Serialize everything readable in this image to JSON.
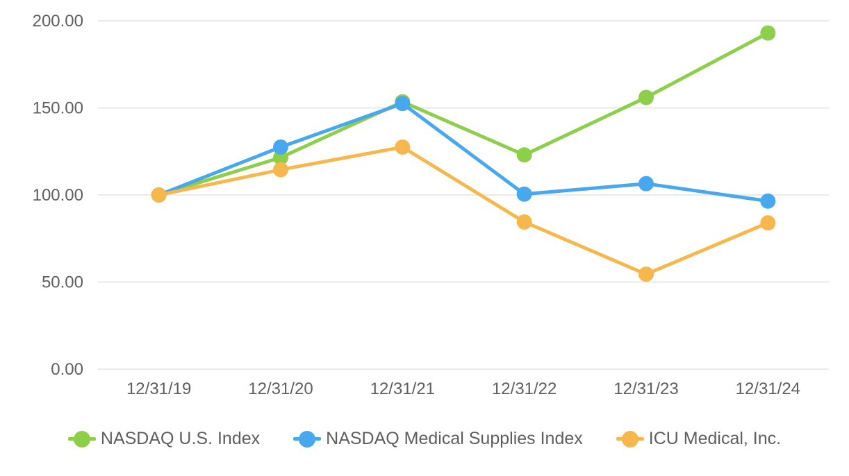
{
  "chart_data": {
    "type": "line",
    "title": "",
    "xlabel": "",
    "ylabel": "",
    "categories": [
      "12/31/19",
      "12/31/20",
      "12/31/21",
      "12/31/22",
      "12/31/23",
      "12/31/24"
    ],
    "series": [
      {
        "name": "NASDAQ U.S. Index",
        "color": "#8DCE4B",
        "values": [
          100.0,
          121.5,
          153.5,
          123.0,
          156.0,
          193.0
        ]
      },
      {
        "name": "NASDAQ Medical Supplies Index",
        "color": "#47A8EE",
        "values": [
          100.0,
          127.5,
          152.5,
          100.5,
          106.5,
          96.5
        ]
      },
      {
        "name": "ICU Medical, Inc.",
        "color": "#F6B84D",
        "values": [
          100.0,
          114.5,
          127.5,
          84.5,
          54.5,
          84.0
        ]
      }
    ],
    "y_ticks": [
      {
        "value": 200,
        "label": "200.00"
      },
      {
        "value": 150,
        "label": "150.00"
      },
      {
        "value": 100,
        "label": "100.00"
      },
      {
        "value": 50,
        "label": "50.00"
      },
      {
        "value": 0,
        "label": "0.00"
      }
    ],
    "ylim": [
      0,
      200
    ],
    "grid": true,
    "legend_position": "bottom",
    "marker": "circle",
    "marker_radius": 11,
    "line_width": 5
  },
  "colors": {
    "grid": "#EAEAEA",
    "axis_text": "#5E5E5E",
    "background": "#FFFFFF"
  }
}
